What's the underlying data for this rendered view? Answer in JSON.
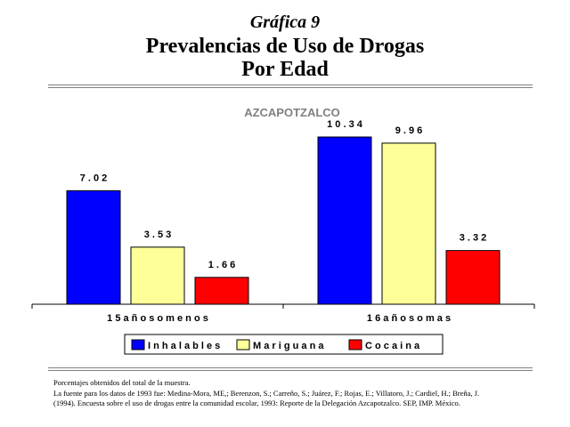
{
  "slide_label": "Gráfica 9",
  "title_line1": "Prevalencias de Uso de Drogas",
  "title_line2": "Por Edad",
  "notes": [
    "Porcentajes obtenidos del total de la muestra.",
    "La fuente para los datos de 1993 fue: Medina-Mora, ME,; Berenzon, S.; Carreño, S.; Juárez, F.; Rojas, E.; Villatoro, J.; Cardiel, H.; Breña, J.",
    "(1994). Encuesta sobre el uso de drogas entre la comunidad escolar, 1993: Reporte de la Delegación Azcapotzalco. SEP, IMP. México."
  ],
  "chart_data": {
    "type": "bar",
    "title": "AZCAPOTZALCO",
    "categories": [
      "1 5  a ñ o s  o  m e n o s",
      "1 6  a ñ o s  o  m a s"
    ],
    "series": [
      {
        "name": "I n h a l a b l e s",
        "values": [
          7.02,
          10.34
        ],
        "labels": [
          "7 . 0 2",
          "1 0 . 3 4"
        ],
        "color": "#0000ff"
      },
      {
        "name": "M a r i g u a n a",
        "values": [
          3.53,
          9.96
        ],
        "labels": [
          "3 . 5 3",
          "9 . 9 6"
        ],
        "color": "#ffff99"
      },
      {
        "name": "C o c a i n a",
        "values": [
          1.66,
          3.32
        ],
        "labels": [
          "1 . 6 6",
          "3 . 3 2"
        ],
        "color": "#ff0000"
      }
    ],
    "ylim": [
      0,
      11
    ],
    "grid": false,
    "legend_position": "bottom"
  }
}
